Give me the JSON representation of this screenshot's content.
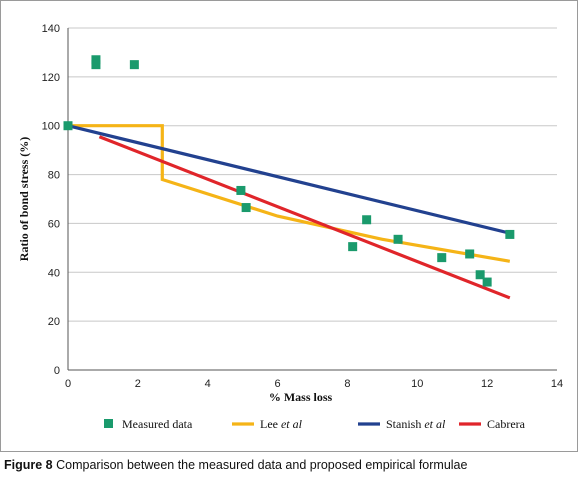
{
  "caption": {
    "label": "Figure 8",
    "text": "Comparison between the measured data and proposed empirical formulae"
  },
  "chart_data": {
    "type": "scatter",
    "xlabel": "% Mass loss",
    "ylabel": "Ratio of bond stress (%)",
    "xlim": [
      0,
      14
    ],
    "ylim": [
      0,
      140
    ],
    "xticks": [
      0,
      2,
      4,
      6,
      8,
      10,
      12,
      14
    ],
    "yticks": [
      0,
      20,
      40,
      60,
      80,
      100,
      120,
      140
    ],
    "grid": "horizontal",
    "legend_position": "bottom",
    "measured": {
      "name": "Measured data",
      "color": "#1a9a6c",
      "points": [
        [
          0,
          100
        ],
        [
          0.8,
          127
        ],
        [
          0.8,
          125
        ],
        [
          1.9,
          125
        ],
        [
          4.95,
          73.5
        ],
        [
          5.1,
          66.5
        ],
        [
          8.15,
          50.5
        ],
        [
          8.55,
          61.5
        ],
        [
          9.45,
          53.5
        ],
        [
          10.7,
          46
        ],
        [
          11.5,
          47.5
        ],
        [
          11.8,
          39
        ],
        [
          12.0,
          36
        ],
        [
          12.65,
          55.5
        ]
      ]
    },
    "series": [
      {
        "name": "Lee",
        "name_suffix": "et al",
        "color": "#f5b417",
        "points": [
          [
            0,
            100
          ],
          [
            2.7,
            100
          ],
          [
            2.7,
            78
          ],
          [
            6,
            63
          ],
          [
            9,
            53.5
          ],
          [
            12.65,
            44.5
          ]
        ]
      },
      {
        "name": "Stanish",
        "name_suffix": "et al",
        "color": "#22418f",
        "points": [
          [
            0,
            100
          ],
          [
            12.65,
            56
          ]
        ]
      },
      {
        "name": "Cabrera",
        "color": "#e0252a",
        "points": [
          [
            0.9,
            95.5
          ],
          [
            12.65,
            29.5
          ]
        ]
      }
    ]
  }
}
